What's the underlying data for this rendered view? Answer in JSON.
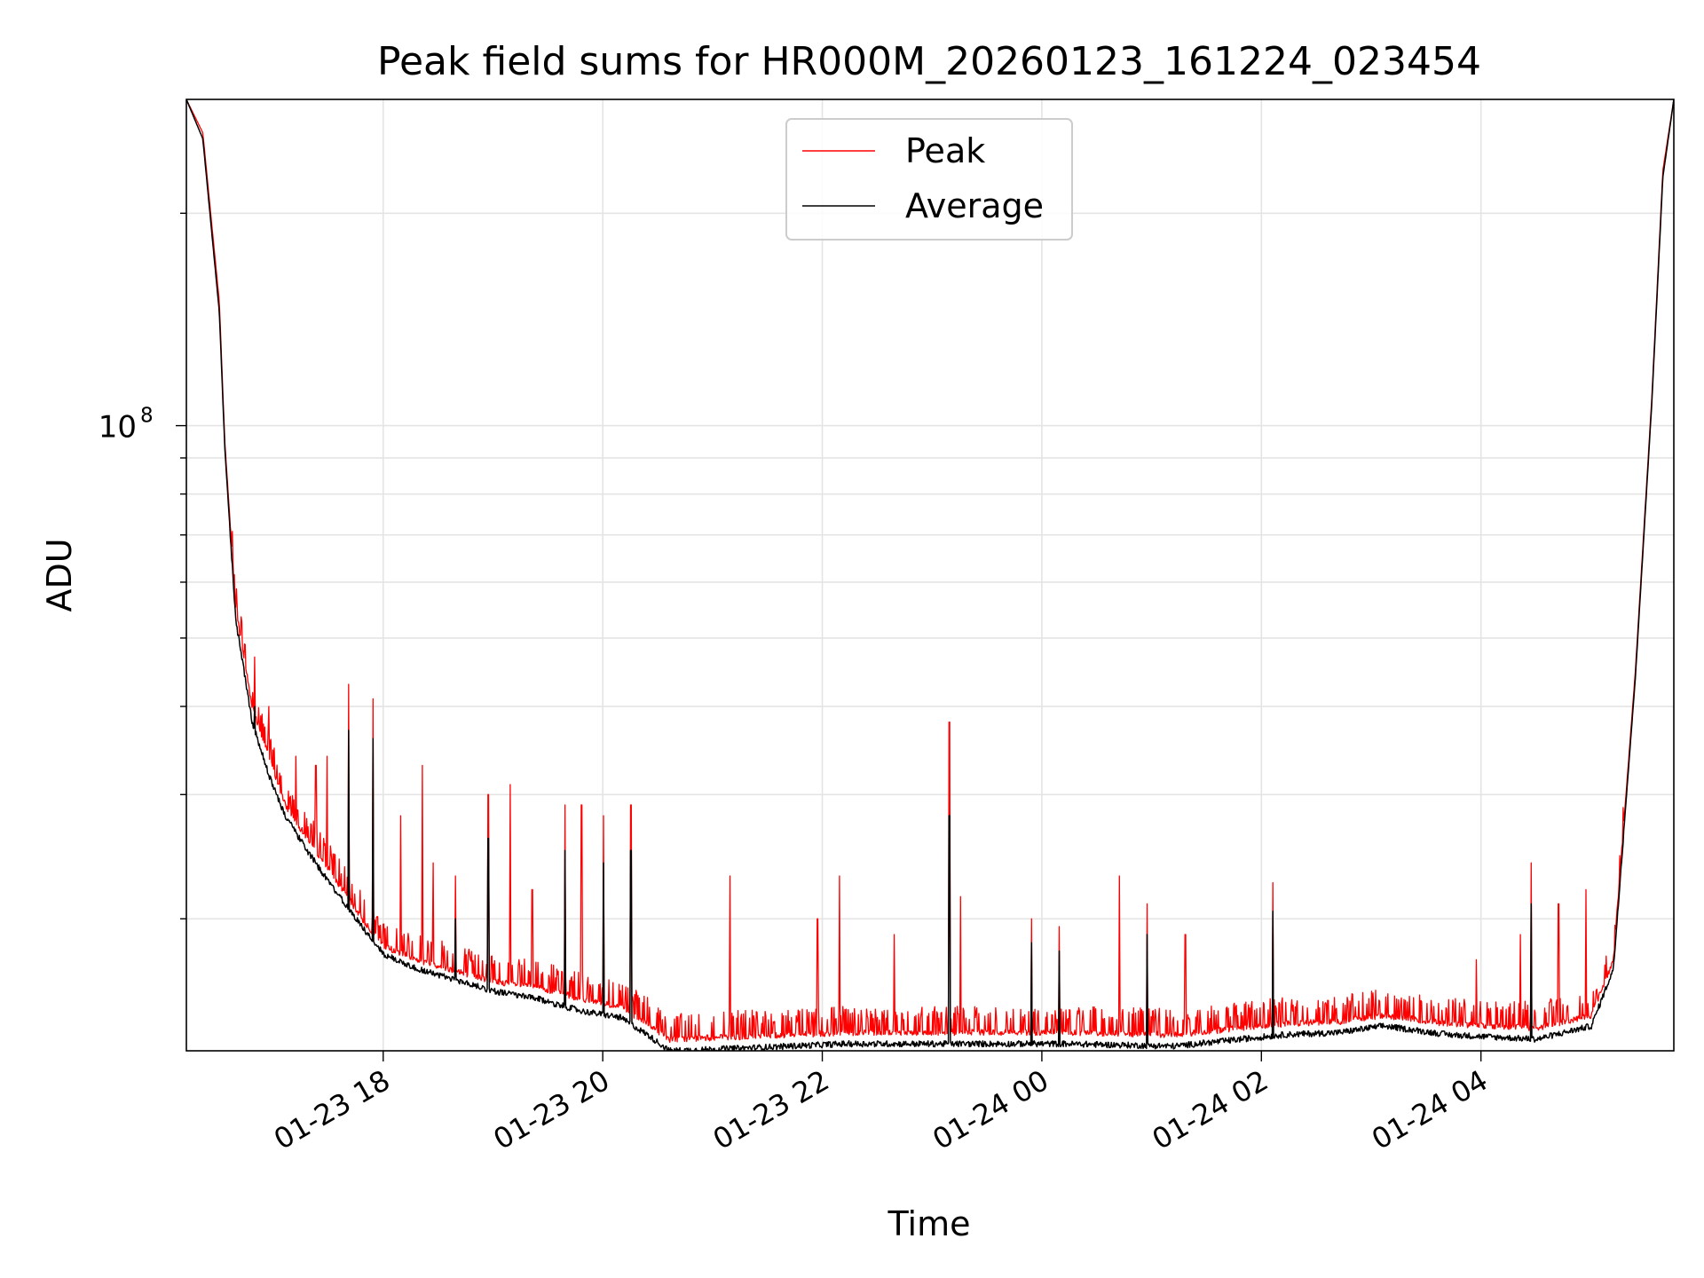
{
  "chart_data": {
    "type": "line",
    "title": "Peak field sums for HR000M_20260123_161224_023454",
    "xlabel": "Time",
    "ylabel": "ADU",
    "yscale": "log",
    "ylim": [
      13000000,
      290000000
    ],
    "x_unit": "hours since 01-23 16:12:24",
    "xlim": [
      0,
      13.55
    ],
    "grid": true,
    "legend_position": "top-center",
    "x_ticks": [
      {
        "label": "01-23 18",
        "value": 1.793
      },
      {
        "label": "01-23 20",
        "value": 3.793
      },
      {
        "label": "01-23 22",
        "value": 5.793
      },
      {
        "label": "01-24 00",
        "value": 7.793
      },
      {
        "label": "01-24 02",
        "value": 9.793
      },
      {
        "label": "01-24 04",
        "value": 11.793
      }
    ],
    "y_ticks": [
      {
        "label": "10",
        "exponent": "8",
        "value": 100000000
      }
    ],
    "series": [
      {
        "name": "Peak",
        "color": "#ff0000",
        "baseline_key": [
          [
            0,
            290000000
          ],
          [
            0.15,
            260000000
          ],
          [
            0.3,
            150000000
          ],
          [
            0.35,
            95000000
          ],
          [
            0.45,
            55000000
          ],
          [
            0.6,
            40000000
          ],
          [
            0.75,
            34000000
          ],
          [
            0.9,
            29000000
          ],
          [
            1.1,
            26000000
          ],
          [
            1.3,
            23500000
          ],
          [
            1.6,
            20000000
          ],
          [
            1.8,
            18300000
          ],
          [
            2.1,
            17500000
          ],
          [
            2.5,
            16800000
          ],
          [
            2.8,
            16300000
          ],
          [
            3.2,
            16000000
          ],
          [
            3.6,
            15400000
          ],
          [
            3.95,
            15000000
          ],
          [
            4.2,
            14200000
          ],
          [
            4.4,
            13500000
          ],
          [
            5.0,
            13600000
          ],
          [
            6.0,
            13800000
          ],
          [
            7.0,
            13800000
          ],
          [
            8.0,
            13800000
          ],
          [
            9.0,
            13700000
          ],
          [
            10.0,
            14200000
          ],
          [
            10.5,
            14300000
          ],
          [
            10.9,
            14600000
          ],
          [
            11.5,
            14200000
          ],
          [
            12.3,
            14000000
          ],
          [
            12.8,
            14600000
          ],
          [
            13.0,
            17500000
          ],
          [
            13.2,
            45000000
          ],
          [
            13.35,
            110000000
          ],
          [
            13.45,
            230000000
          ],
          [
            13.55,
            290000000
          ]
        ],
        "spikes": [
          [
            0.62,
            47000000
          ],
          [
            0.75,
            40000000
          ],
          [
            1.0,
            34000000
          ],
          [
            1.18,
            33000000
          ],
          [
            1.28,
            34000000
          ],
          [
            1.48,
            43000000
          ],
          [
            1.7,
            41000000
          ],
          [
            1.95,
            28000000
          ],
          [
            2.15,
            33000000
          ],
          [
            2.25,
            24000000
          ],
          [
            2.45,
            23000000
          ],
          [
            2.75,
            30000000
          ],
          [
            2.95,
            31000000
          ],
          [
            3.15,
            22000000
          ],
          [
            3.45,
            29000000
          ],
          [
            3.6,
            29000000
          ],
          [
            3.8,
            28000000
          ],
          [
            4.05,
            29000000
          ],
          [
            4.95,
            23000000
          ],
          [
            5.75,
            20000000
          ],
          [
            5.95,
            23000000
          ],
          [
            6.45,
            19000000
          ],
          [
            6.95,
            38000000
          ],
          [
            7.05,
            21500000
          ],
          [
            7.7,
            20000000
          ],
          [
            7.95,
            19500000
          ],
          [
            8.5,
            23000000
          ],
          [
            8.75,
            21000000
          ],
          [
            9.1,
            19000000
          ],
          [
            9.9,
            22500000
          ],
          [
            11.75,
            17500000
          ],
          [
            12.15,
            19000000
          ],
          [
            12.25,
            24000000
          ],
          [
            12.5,
            21000000
          ],
          [
            12.75,
            22000000
          ],
          [
            13.05,
            22000000
          ]
        ],
        "values_note": "dense noisy time series; key points listed"
      },
      {
        "name": "Average",
        "color": "#000000",
        "baseline_key": [
          [
            0,
            290000000
          ],
          [
            0.15,
            255000000
          ],
          [
            0.3,
            145000000
          ],
          [
            0.35,
            93000000
          ],
          [
            0.45,
            53000000
          ],
          [
            0.6,
            38000000
          ],
          [
            0.75,
            32000000
          ],
          [
            0.9,
            28000000
          ],
          [
            1.1,
            25000000
          ],
          [
            1.3,
            22500000
          ],
          [
            1.6,
            19500000
          ],
          [
            1.8,
            17800000
          ],
          [
            2.1,
            17000000
          ],
          [
            2.5,
            16300000
          ],
          [
            2.8,
            15800000
          ],
          [
            3.2,
            15400000
          ],
          [
            3.6,
            14800000
          ],
          [
            3.95,
            14500000
          ],
          [
            4.2,
            13700000
          ],
          [
            4.4,
            13000000
          ],
          [
            5.0,
            13100000
          ],
          [
            6.0,
            13300000
          ],
          [
            7.0,
            13300000
          ],
          [
            8.0,
            13300000
          ],
          [
            9.0,
            13200000
          ],
          [
            10.0,
            13700000
          ],
          [
            10.5,
            13800000
          ],
          [
            10.9,
            14100000
          ],
          [
            11.5,
            13700000
          ],
          [
            12.3,
            13500000
          ],
          [
            12.8,
            14100000
          ],
          [
            13.0,
            17000000
          ],
          [
            13.2,
            44000000
          ],
          [
            13.35,
            108000000
          ],
          [
            13.45,
            225000000
          ],
          [
            13.55,
            290000000
          ]
        ],
        "spikes": [
          [
            0.62,
            40000000
          ],
          [
            1.48,
            37000000
          ],
          [
            1.7,
            36000000
          ],
          [
            2.45,
            20000000
          ],
          [
            2.75,
            26000000
          ],
          [
            3.45,
            25000000
          ],
          [
            3.8,
            24000000
          ],
          [
            4.05,
            25000000
          ],
          [
            6.95,
            28000000
          ],
          [
            7.7,
            18500000
          ],
          [
            7.95,
            18000000
          ],
          [
            8.75,
            19000000
          ],
          [
            9.9,
            20500000
          ],
          [
            12.25,
            21000000
          ]
        ]
      }
    ]
  }
}
